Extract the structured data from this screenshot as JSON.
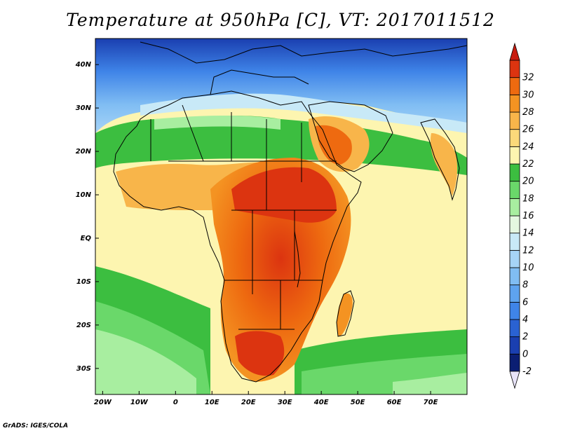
{
  "title": "Temperature at 950hPa [C], VT: 2017011512",
  "credit": "GrADS: IGES/COLA",
  "map": {
    "lon_range": [
      -22,
      80
    ],
    "lat_range": [
      -36,
      46
    ],
    "x_ticks": [
      {
        "lon": -20,
        "label": "20W"
      },
      {
        "lon": -10,
        "label": "10W"
      },
      {
        "lon": 0,
        "label": "0"
      },
      {
        "lon": 10,
        "label": "10E"
      },
      {
        "lon": 20,
        "label": "20E"
      },
      {
        "lon": 30,
        "label": "30E"
      },
      {
        "lon": 40,
        "label": "40E"
      },
      {
        "lon": 50,
        "label": "50E"
      },
      {
        "lon": 60,
        "label": "60E"
      },
      {
        "lon": 70,
        "label": "70E"
      }
    ],
    "y_ticks": [
      {
        "lat": 40,
        "label": "40N"
      },
      {
        "lat": 30,
        "label": "30N"
      },
      {
        "lat": 20,
        "label": "20N"
      },
      {
        "lat": 10,
        "label": "10N"
      },
      {
        "lat": 0,
        "label": "EQ"
      },
      {
        "lat": -10,
        "label": "10S"
      },
      {
        "lat": -20,
        "label": "20S"
      },
      {
        "lat": -30,
        "label": "30S"
      }
    ]
  },
  "colorbar": {
    "levels": [
      {
        "value": "-2",
        "color": "#0b1e73"
      },
      {
        "value": "0",
        "color": "#1a3fb0"
      },
      {
        "value": "2",
        "color": "#2a62d2"
      },
      {
        "value": "4",
        "color": "#3f84e8"
      },
      {
        "value": "6",
        "color": "#5ea3ef"
      },
      {
        "value": "8",
        "color": "#80bdf3"
      },
      {
        "value": "10",
        "color": "#a6d4f7"
      },
      {
        "value": "12",
        "color": "#c8e9f7"
      },
      {
        "value": "14",
        "color": "#e4f7e0"
      },
      {
        "value": "16",
        "color": "#a8eea0"
      },
      {
        "value": "18",
        "color": "#6ad86a"
      },
      {
        "value": "20",
        "color": "#3cbe40"
      },
      {
        "value": "22",
        "color": "#fdf5b0"
      },
      {
        "value": "24",
        "color": "#fbd97a"
      },
      {
        "value": "26",
        "color": "#f8b54a"
      },
      {
        "value": "28",
        "color": "#f49322"
      },
      {
        "value": "30",
        "color": "#ee6a10"
      },
      {
        "value": "32",
        "color": "#dc3410"
      }
    ],
    "under_color": "#e8e4f8",
    "over_color": "#c81c10"
  }
}
